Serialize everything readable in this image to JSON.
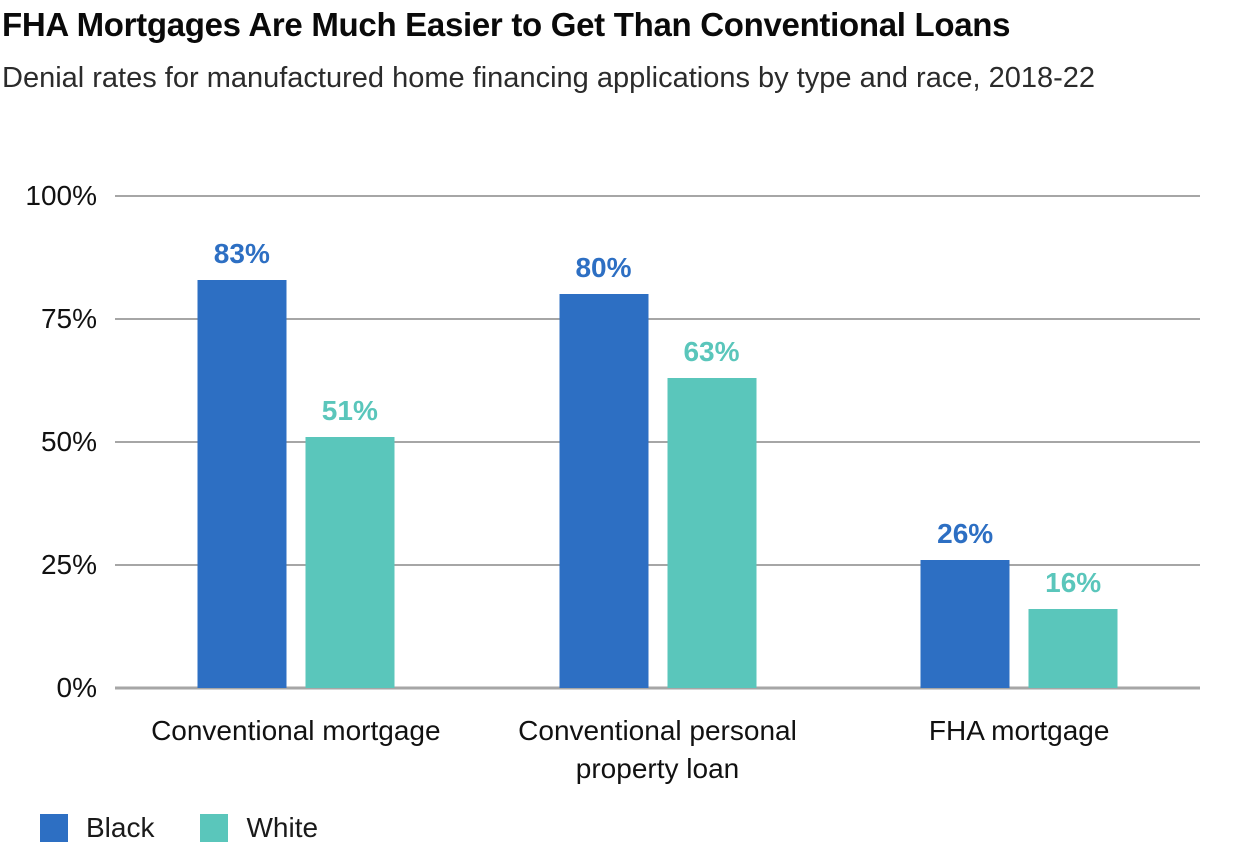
{
  "header": {
    "title": "FHA Mortgages Are Much Easier to Get Than Conventional Loans",
    "subtitle": "Denial rates for manufactured home financing applications by type and race, 2018-22"
  },
  "chart_data": {
    "type": "bar",
    "title": "FHA Mortgages Are Much Easier to Get Than Conventional Loans",
    "subtitle": "Denial rates for manufactured home financing applications by type and race, 2018-22",
    "categories": [
      "Conventional mortgage",
      "Conventional personal property loan",
      "FHA mortgage"
    ],
    "series": [
      {
        "name": "Black",
        "color": "#2D6FC3",
        "values": [
          83,
          80,
          26
        ]
      },
      {
        "name": "White",
        "color": "#5AC6BB",
        "values": [
          51,
          63,
          16
        ]
      }
    ],
    "value_suffix": "%",
    "ylim": [
      0,
      100
    ],
    "ytick_values": [
      100,
      75,
      50,
      25,
      0
    ],
    "ytick_suffix": "%",
    "grid": true,
    "gridline_color": "#A6A6A6",
    "legend_position": "bottom-left",
    "group_center_fractions": [
      0.16667,
      0.5,
      0.83333
    ]
  }
}
